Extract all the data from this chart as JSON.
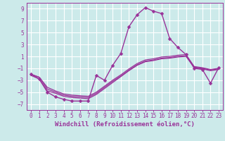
{
  "bg_color": "#cceaea",
  "grid_color": "#ffffff",
  "line_color": "#993399",
  "xlabel": "Windchill (Refroidissement éolien,°C)",
  "xlabel_fontsize": 6.5,
  "tick_fontsize": 5.5,
  "yticks": [
    -7,
    -5,
    -3,
    -1,
    1,
    3,
    5,
    7,
    9
  ],
  "xticks": [
    0,
    1,
    2,
    3,
    4,
    5,
    6,
    7,
    8,
    9,
    10,
    11,
    12,
    13,
    14,
    15,
    16,
    17,
    18,
    19,
    20,
    21,
    22,
    23
  ],
  "xlim": [
    -0.5,
    23.5
  ],
  "ylim": [
    -8.0,
    10.0
  ],
  "series": [
    {
      "x": [
        0,
        1,
        2,
        3,
        4,
        5,
        6,
        7,
        8,
        9,
        10,
        11,
        12,
        13,
        14,
        15,
        16,
        17,
        18,
        19,
        20,
        21,
        22,
        23
      ],
      "y": [
        -2.0,
        -2.8,
        -5.0,
        -5.8,
        -6.2,
        -6.5,
        -6.5,
        -6.5,
        -2.2,
        -3.0,
        -0.5,
        1.5,
        6.0,
        8.0,
        9.2,
        8.6,
        8.2,
        4.0,
        2.5,
        1.3,
        -1.0,
        -1.2,
        -3.5,
        -0.9
      ],
      "marker": "D",
      "markersize": 2.5,
      "linewidth": 1.0,
      "has_marker": true
    },
    {
      "x": [
        0,
        1,
        2,
        3,
        4,
        5,
        6,
        7,
        8,
        9,
        10,
        11,
        12,
        13,
        14,
        15,
        16,
        17,
        18,
        19,
        20,
        21,
        22,
        23
      ],
      "y": [
        -2.0,
        -2.5,
        -4.5,
        -5.0,
        -5.5,
        -5.7,
        -5.8,
        -5.9,
        -5.2,
        -4.2,
        -3.2,
        -2.3,
        -1.3,
        -0.4,
        0.2,
        0.4,
        0.7,
        0.8,
        1.0,
        1.1,
        -0.8,
        -1.0,
        -1.3,
        -1.1
      ],
      "marker": null,
      "markersize": 0,
      "linewidth": 0.9,
      "has_marker": false
    },
    {
      "x": [
        0,
        1,
        2,
        3,
        4,
        5,
        6,
        7,
        8,
        9,
        10,
        11,
        12,
        13,
        14,
        15,
        16,
        17,
        18,
        19,
        20,
        21,
        22,
        23
      ],
      "y": [
        -2.0,
        -2.5,
        -4.2,
        -4.8,
        -5.3,
        -5.5,
        -5.6,
        -5.7,
        -5.0,
        -4.0,
        -3.0,
        -2.1,
        -1.1,
        -0.2,
        0.4,
        0.6,
        0.9,
        1.0,
        1.2,
        1.3,
        -0.7,
        -0.9,
        -1.2,
        -1.0
      ],
      "marker": null,
      "markersize": 0,
      "linewidth": 0.9,
      "has_marker": false
    },
    {
      "x": [
        0,
        1,
        2,
        3,
        4,
        5,
        6,
        7,
        8,
        9,
        10,
        11,
        12,
        13,
        14,
        15,
        16,
        17,
        18,
        19,
        20,
        21,
        22,
        23
      ],
      "y": [
        -2.2,
        -2.8,
        -4.8,
        -5.2,
        -5.7,
        -5.9,
        -6.0,
        -6.1,
        -5.4,
        -4.4,
        -3.4,
        -2.4,
        -1.4,
        -0.5,
        0.1,
        0.3,
        0.6,
        0.7,
        0.9,
        1.0,
        -0.9,
        -1.1,
        -1.4,
        -1.2
      ],
      "marker": null,
      "markersize": 0,
      "linewidth": 0.9,
      "has_marker": false
    }
  ]
}
